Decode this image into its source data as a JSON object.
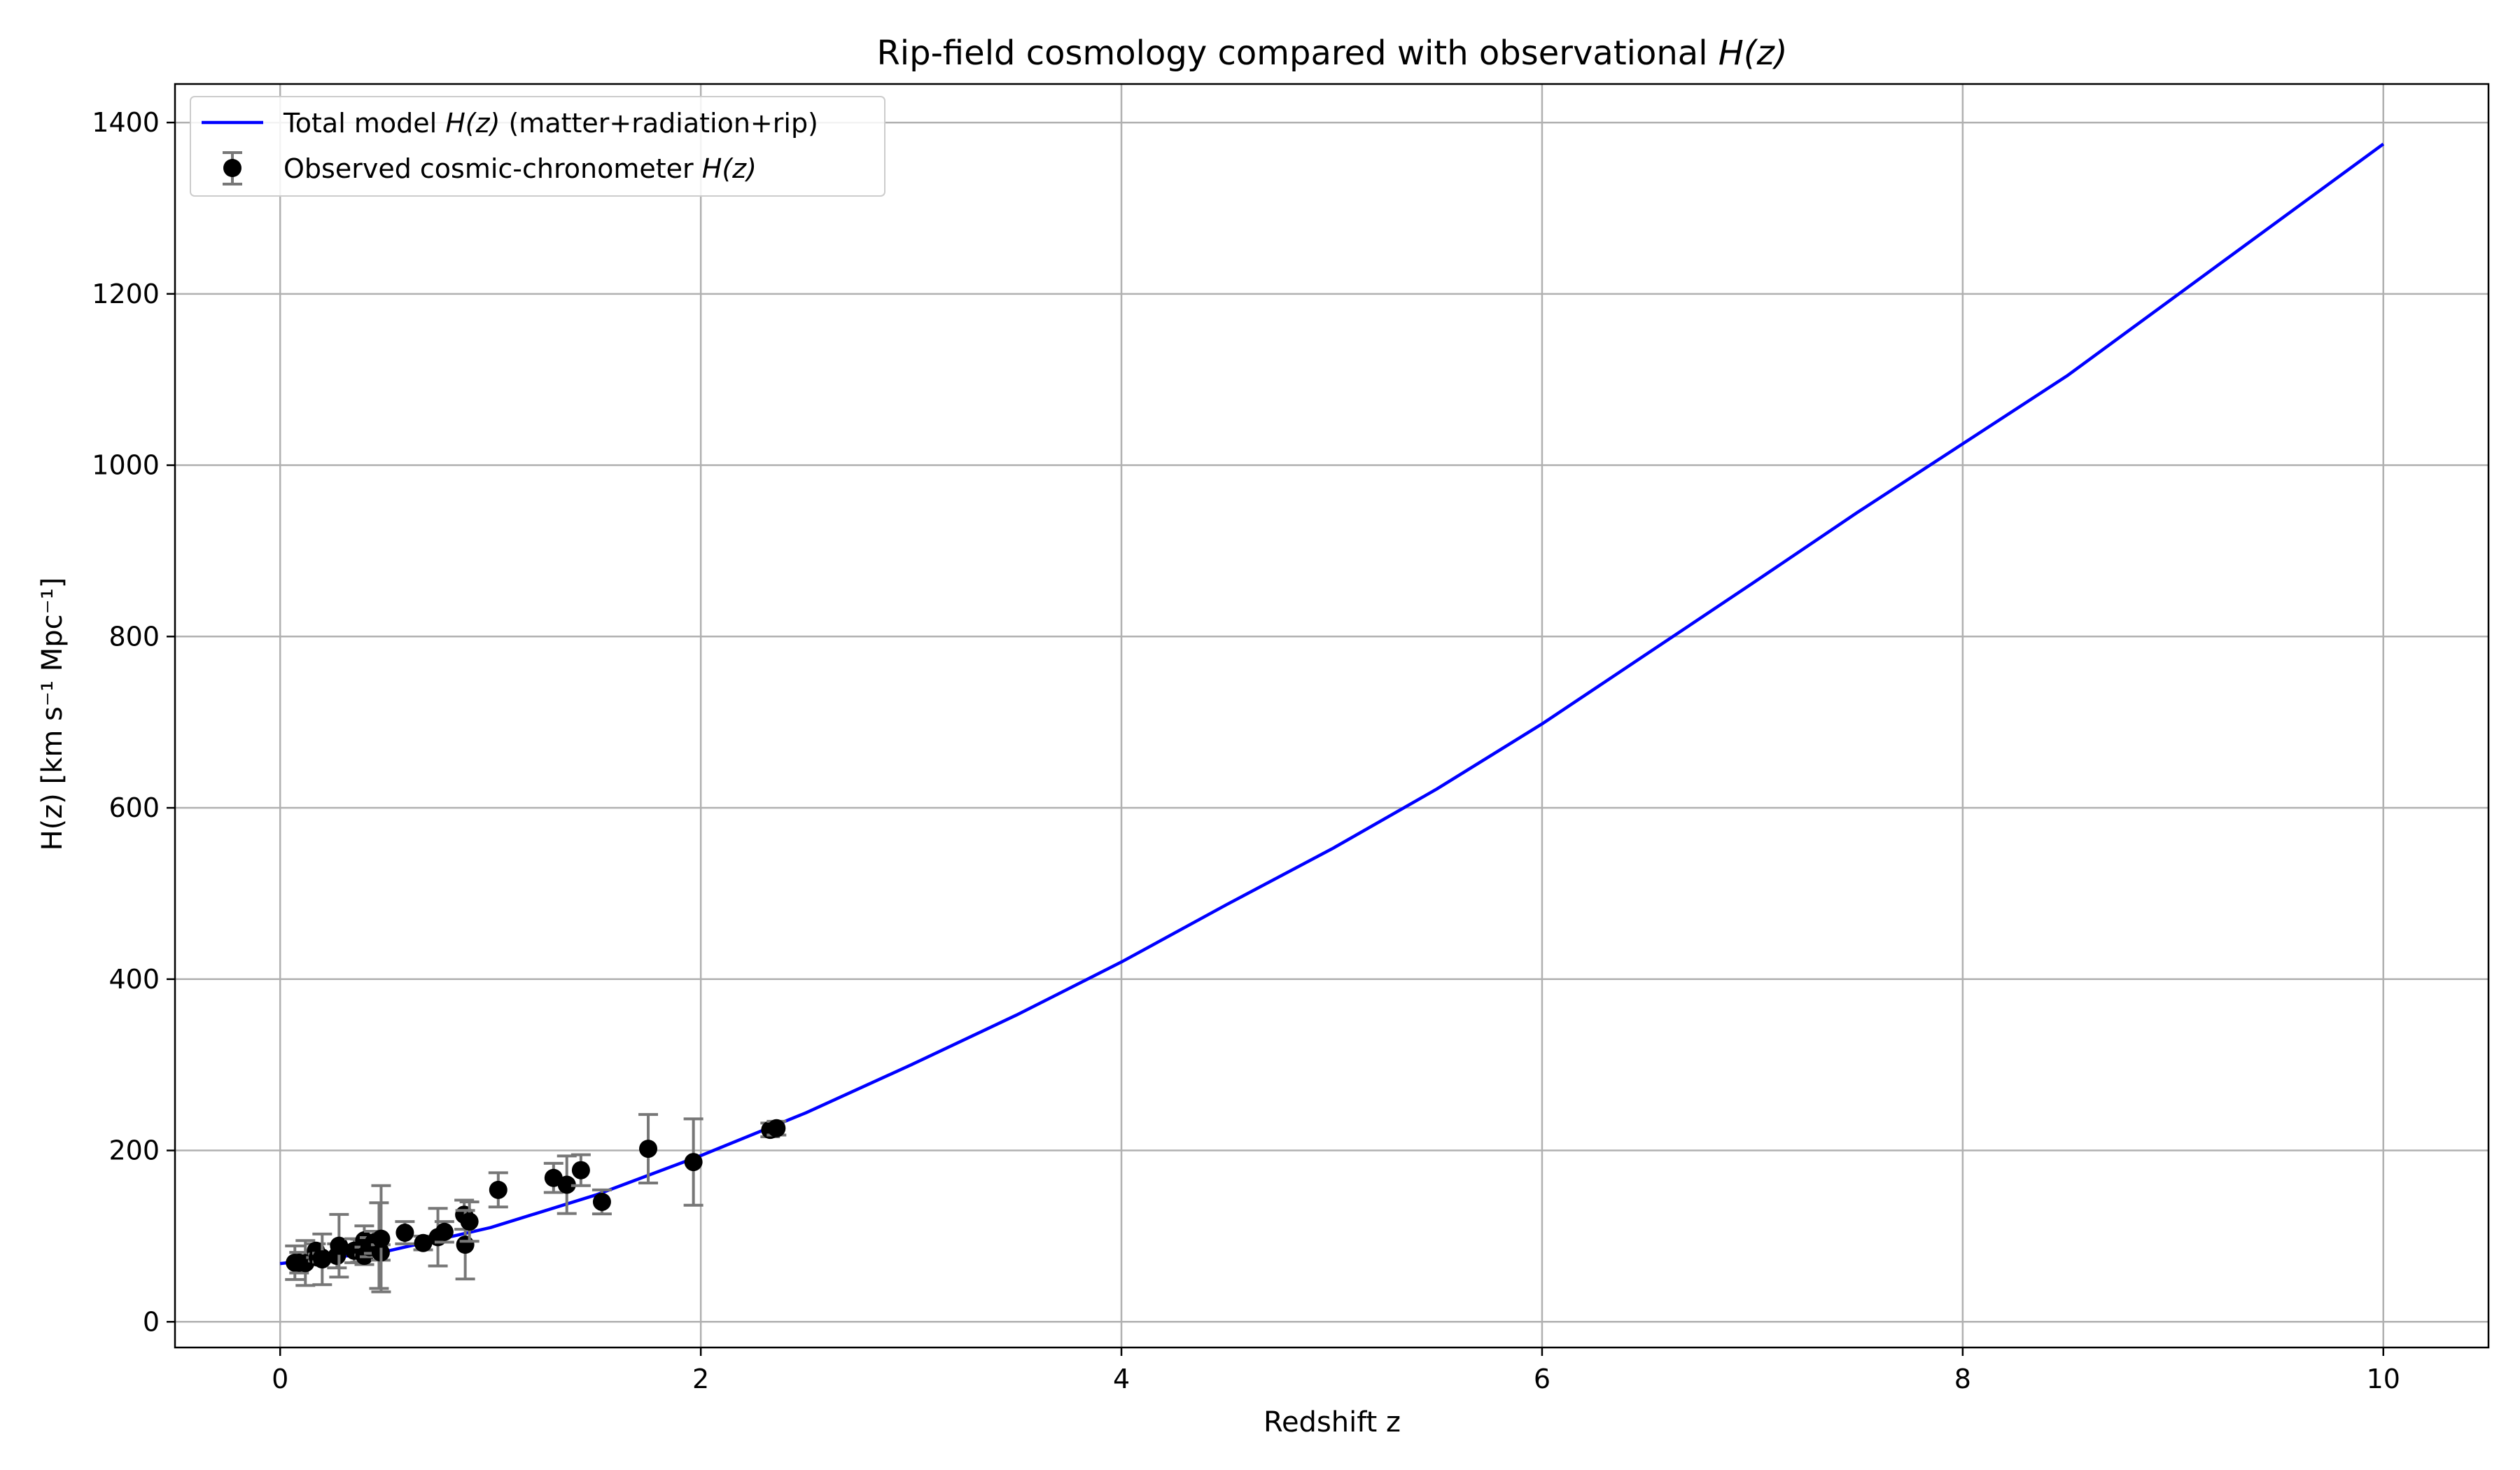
{
  "chart_data": {
    "type": "line",
    "title_main": "Rip-field cosmology compared with observational ",
    "title_math": "H(z)",
    "xlabel": "Redshift  z",
    "ylabel": "H(z)  [km s⁻¹ Mpc⁻¹]",
    "xlim": [
      -0.5,
      10.5
    ],
    "ylim": [
      -30,
      1445
    ],
    "x_ticks": [
      0,
      2,
      4,
      6,
      8,
      10
    ],
    "y_ticks": [
      0,
      200,
      400,
      600,
      800,
      1000,
      1200,
      1400
    ],
    "grid": true,
    "legend_position": "top-left",
    "legend": [
      {
        "label_main": "Total model ",
        "label_math": "H(z)",
        "label_tail": " (matter+radiation+rip)"
      },
      {
        "label_main": "Observed cosmic-chronometer ",
        "label_math": "H(z)",
        "label_tail": ""
      }
    ],
    "series": [
      {
        "name": "Total model H(z) (matter+radiation+rip)",
        "kind": "line",
        "color": "#0000ff",
        "x": [
          0,
          0.5,
          1,
          1.5,
          2,
          2.5,
          3,
          3.5,
          4,
          4.5,
          5,
          5.5,
          6,
          6.5,
          7,
          7.5,
          8,
          8.5,
          9,
          9.5,
          10
        ],
        "y": [
          68,
          82,
          110,
          148,
          194,
          244,
          300,
          358,
          420,
          487,
          552,
          622,
          698,
          780,
          862,
          945,
          1025,
          1105,
          1195,
          1285,
          1375
        ]
      },
      {
        "name": "Observed cosmic-chronometer H(z)",
        "kind": "errorbar",
        "color": "#000000",
        "error_color": "#777777",
        "points": [
          {
            "x": 0.07,
            "y": 69,
            "err": 19.6
          },
          {
            "x": 0.09,
            "y": 69,
            "err": 12
          },
          {
            "x": 0.12,
            "y": 68.6,
            "err": 26.2
          },
          {
            "x": 0.17,
            "y": 83,
            "err": 8
          },
          {
            "x": 0.179,
            "y": 75,
            "err": 4
          },
          {
            "x": 0.199,
            "y": 75,
            "err": 5
          },
          {
            "x": 0.2,
            "y": 72.9,
            "err": 29.6
          },
          {
            "x": 0.27,
            "y": 77,
            "err": 14
          },
          {
            "x": 0.28,
            "y": 88.8,
            "err": 36.6
          },
          {
            "x": 0.352,
            "y": 83,
            "err": 14
          },
          {
            "x": 0.38,
            "y": 83,
            "err": 13.5
          },
          {
            "x": 0.4,
            "y": 95,
            "err": 17
          },
          {
            "x": 0.4004,
            "y": 77,
            "err": 10.2
          },
          {
            "x": 0.425,
            "y": 87.1,
            "err": 11.2
          },
          {
            "x": 0.445,
            "y": 92.8,
            "err": 12.9
          },
          {
            "x": 0.47,
            "y": 89,
            "err": 50
          },
          {
            "x": 0.4783,
            "y": 80.9,
            "err": 9
          },
          {
            "x": 0.48,
            "y": 97,
            "err": 62
          },
          {
            "x": 0.593,
            "y": 104,
            "err": 13
          },
          {
            "x": 0.68,
            "y": 92,
            "err": 8
          },
          {
            "x": 0.75,
            "y": 98.8,
            "err": 33.6
          },
          {
            "x": 0.781,
            "y": 105,
            "err": 12
          },
          {
            "x": 0.875,
            "y": 125,
            "err": 17
          },
          {
            "x": 0.88,
            "y": 90,
            "err": 40
          },
          {
            "x": 0.9,
            "y": 117,
            "err": 23
          },
          {
            "x": 1.037,
            "y": 154,
            "err": 20
          },
          {
            "x": 1.3,
            "y": 168,
            "err": 17
          },
          {
            "x": 1.363,
            "y": 160,
            "err": 33.6
          },
          {
            "x": 1.43,
            "y": 177,
            "err": 18
          },
          {
            "x": 1.53,
            "y": 140,
            "err": 14
          },
          {
            "x": 1.75,
            "y": 202,
            "err": 40
          },
          {
            "x": 1.965,
            "y": 186.5,
            "err": 50.4
          },
          {
            "x": 2.33,
            "y": 224,
            "err": 8
          },
          {
            "x": 2.36,
            "y": 226,
            "err": 8
          }
        ]
      }
    ]
  }
}
